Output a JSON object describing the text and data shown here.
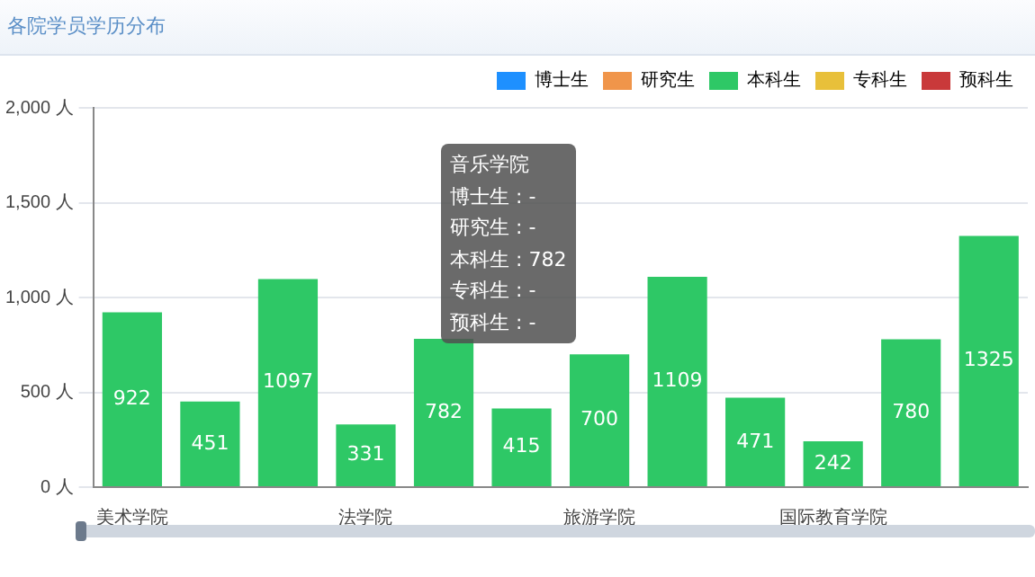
{
  "chart_data": {
    "type": "bar",
    "title": "各院学员学历分布",
    "categories": [
      "美术学院",
      null,
      null,
      "法学院",
      null,
      null,
      "旅游学院",
      null,
      null,
      "国际教育学院",
      null,
      null
    ],
    "series": [
      {
        "name": "博士生",
        "color": "#1e90ff",
        "values": [
          null,
          null,
          null,
          null,
          null,
          null,
          null,
          null,
          null,
          null,
          null,
          null
        ]
      },
      {
        "name": "研究生",
        "color": "#f0954a",
        "values": [
          null,
          null,
          null,
          null,
          null,
          null,
          null,
          null,
          null,
          null,
          null,
          null
        ]
      },
      {
        "name": "本科生",
        "color": "#2ec866",
        "values": [
          922,
          451,
          1097,
          331,
          782,
          415,
          700,
          1109,
          471,
          242,
          780,
          1325
        ]
      },
      {
        "name": "专科生",
        "color": "#e8c03a",
        "values": [
          null,
          null,
          null,
          null,
          null,
          null,
          null,
          null,
          null,
          null,
          null,
          null
        ]
      },
      {
        "name": "预科生",
        "color": "#c9393a",
        "values": [
          null,
          null,
          null,
          null,
          null,
          null,
          null,
          null,
          null,
          null,
          null,
          null
        ]
      }
    ],
    "ylim": [
      0,
      2000
    ],
    "yticks": [
      {
        "value": 0,
        "label": "0 人"
      },
      {
        "value": 500,
        "label": "500 人"
      },
      {
        "value": 1000,
        "label": "1,000 人"
      },
      {
        "value": 1500,
        "label": "1,500 人"
      },
      {
        "value": 2000,
        "label": "2,000 人"
      }
    ],
    "grid": "y",
    "legend": "top right",
    "data_labels": true,
    "annotations": [
      "音乐学院",
      "博士生 : -",
      "研究生 : -",
      "本科生 : 782",
      "专科生 : -",
      "预科生 : -"
    ]
  }
}
